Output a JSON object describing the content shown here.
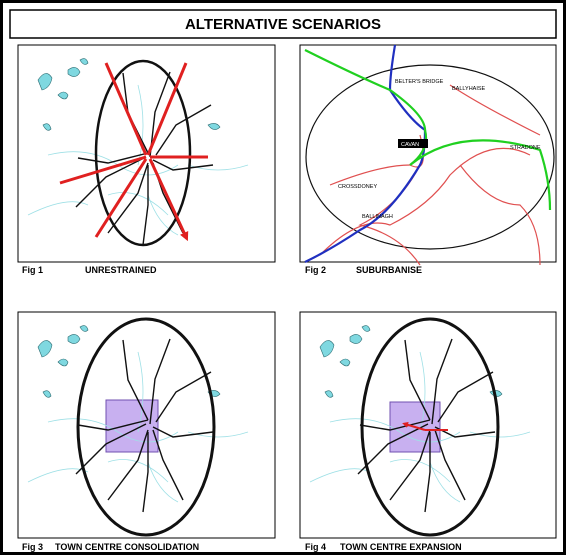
{
  "title": "ALTERNATIVE SCENARIOS",
  "figures": [
    {
      "number": "Fig 1",
      "caption": "UNRESTRAINED"
    },
    {
      "number": "Fig 2",
      "caption": "SUBURBANISE"
    },
    {
      "number": "Fig 3",
      "caption": "TOWN CENTRE CONSOLIDATION"
    },
    {
      "number": "Fig 4",
      "caption": "TOWN CENTRE EXPANSION"
    }
  ],
  "map_labels": [
    "BELTER'S BRIDGE",
    "BALLYHAISE",
    "CAVAN",
    "STRADONE",
    "CROSSDONEY",
    "BALLINAGH"
  ]
}
